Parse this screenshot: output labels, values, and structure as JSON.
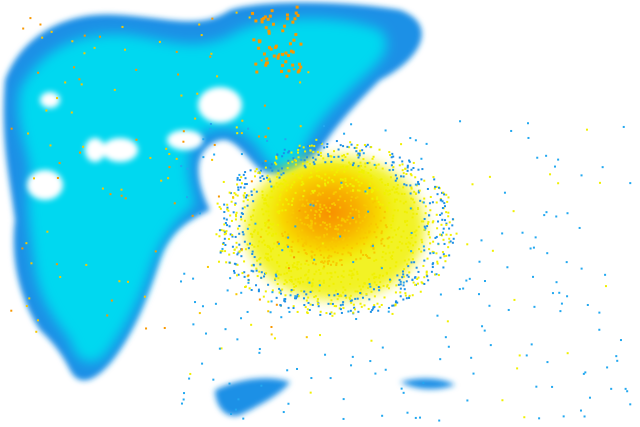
{
  "radar": {
    "background": "#ffffff",
    "colors": {
      "edge_blue": "#1e90e6",
      "mid_blue": "#22a8f0",
      "cyan": "#00d8f0",
      "yellow": "#f0f000",
      "yellow_orange": "#f8c800",
      "orange": "#f89800"
    }
  }
}
